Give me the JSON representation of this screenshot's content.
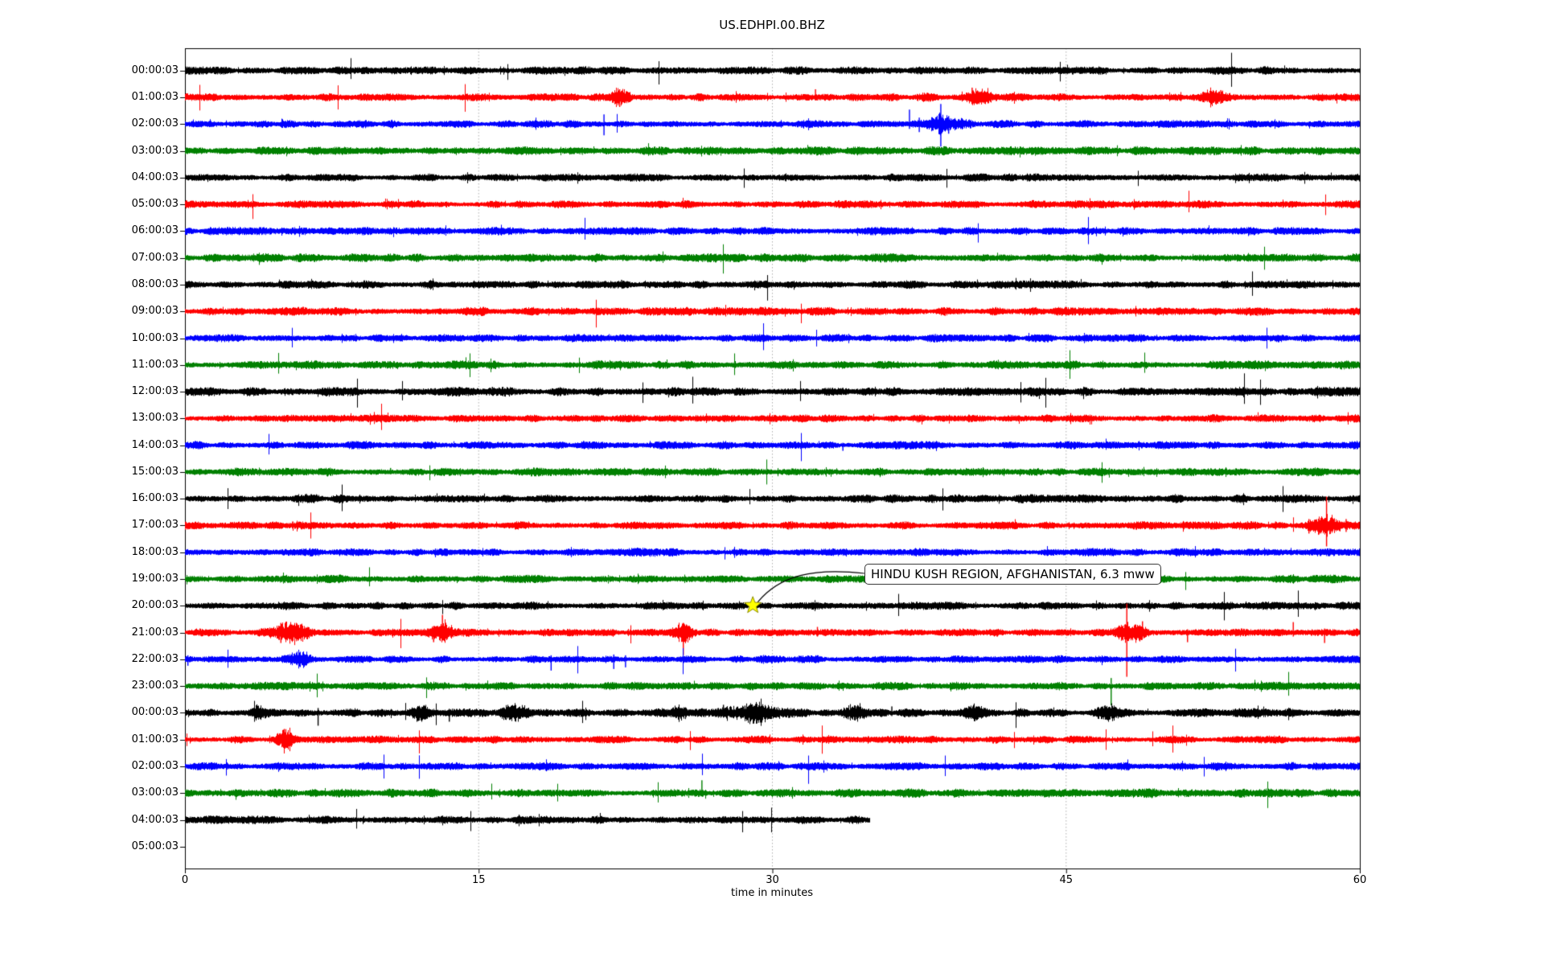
{
  "title": "US.EDHPI.00.BHZ",
  "xlabel": "time in minutes",
  "annotation": {
    "text": "HINDU KUSH REGION, AFGHANISTAN, 6.3 mww",
    "target_row_index": 20,
    "target_minute": 29.0
  },
  "chart_data": {
    "type": "line",
    "subtype": "helicorder-drum-plot",
    "title": "US.EDHPI.00.BHZ",
    "xlabel": "time in minutes",
    "x_range": [
      0,
      60
    ],
    "x_ticks": [
      0,
      15,
      30,
      45,
      60
    ],
    "minutes_per_row": 60,
    "grid": {
      "vertical_at_minutes": [
        15,
        30,
        45
      ],
      "style": "dotted",
      "color": "#9a9a9a"
    },
    "colors_cycle": [
      "#000000",
      "#ff0000",
      "#0000ff",
      "#008000"
    ],
    "marker": {
      "shape": "star",
      "fill": "#ffff00",
      "edge": "#8c8c00",
      "row_index": 20,
      "t": 29.0
    },
    "rows": [
      {
        "label": "00:00:03",
        "color": "#000000",
        "end": 60,
        "base": 3.4,
        "events": [
          {
            "kind": "burst",
            "t": 10.5,
            "dur": 2.0,
            "amp": 1.2
          },
          {
            "kind": "burst",
            "t": 26.0,
            "dur": 2.0,
            "amp": 1.0
          },
          {
            "kind": "burst",
            "t": 45.5,
            "dur": 1.5,
            "amp": 1.2
          }
        ]
      },
      {
        "label": "01:00:03",
        "color": "#ff0000",
        "end": 60,
        "base": 3.2,
        "events": [
          {
            "kind": "burst",
            "t": 22.2,
            "dur": 1.0,
            "amp": 6
          },
          {
            "kind": "spike",
            "t": 22.2,
            "up": 10,
            "down": 12
          },
          {
            "kind": "spike",
            "t": 32.2,
            "up": 10,
            "down": 4
          },
          {
            "kind": "burst",
            "t": 40.6,
            "dur": 1.2,
            "amp": 7
          },
          {
            "kind": "spike",
            "t": 40.2,
            "up": 12,
            "down": 7
          },
          {
            "kind": "burst",
            "t": 52.4,
            "dur": 1.5,
            "amp": 7
          },
          {
            "kind": "spike",
            "t": 52.9,
            "up": 9,
            "down": 8
          },
          {
            "kind": "burst",
            "t": 37.7,
            "dur": 0.8,
            "amp": 3
          }
        ]
      },
      {
        "label": "02:00:03",
        "color": "#0000ff",
        "end": 60,
        "base": 3.2,
        "events": [
          {
            "kind": "spike",
            "t": 21.4,
            "up": 12,
            "down": 14
          },
          {
            "kind": "spike",
            "t": 37.0,
            "up": 18,
            "down": 6
          },
          {
            "kind": "spike",
            "t": 37.5,
            "up": 8,
            "down": 10
          },
          {
            "kind": "burst",
            "t": 38.6,
            "dur": 0.9,
            "amp": 10
          },
          {
            "kind": "spike",
            "t": 38.6,
            "up": 25,
            "down": 28
          },
          {
            "kind": "spike",
            "t": 39.0,
            "up": 10,
            "down": 12
          },
          {
            "kind": "burst",
            "t": 39.7,
            "dur": 1.2,
            "amp": 4
          }
        ]
      },
      {
        "label": "03:00:03",
        "color": "#008000",
        "end": 60,
        "base": 3.6,
        "events": []
      },
      {
        "label": "04:00:03",
        "color": "#000000",
        "end": 60,
        "base": 3.2,
        "events": [
          {
            "kind": "burst",
            "t": 30.5,
            "dur": 2.0,
            "amp": 1.0
          }
        ]
      },
      {
        "label": "05:00:03",
        "color": "#ff0000",
        "end": 60,
        "base": 3.2,
        "events": []
      },
      {
        "label": "06:00:03",
        "color": "#0000ff",
        "end": 60,
        "base": 3.3,
        "events": [
          {
            "kind": "burst",
            "t": 6.0,
            "dur": 1.5,
            "amp": 1.5
          }
        ]
      },
      {
        "label": "07:00:03",
        "color": "#008000",
        "end": 60,
        "base": 3.5,
        "events": []
      },
      {
        "label": "08:00:03",
        "color": "#000000",
        "end": 60,
        "base": 3.3,
        "events": [
          {
            "kind": "spike",
            "t": 22.3,
            "up": 6,
            "down": 3
          }
        ]
      },
      {
        "label": "09:00:03",
        "color": "#ff0000",
        "end": 60,
        "base": 3.5,
        "events": []
      },
      {
        "label": "10:00:03",
        "color": "#0000ff",
        "end": 60,
        "base": 3.2,
        "events": []
      },
      {
        "label": "11:00:03",
        "color": "#008000",
        "end": 60,
        "base": 3.5,
        "events": []
      },
      {
        "label": "12:00:03",
        "color": "#000000",
        "end": 60,
        "base": 3.8,
        "events": [
          {
            "kind": "spike",
            "t": 15.7,
            "up": 6,
            "down": 3
          }
        ]
      },
      {
        "label": "13:00:03",
        "color": "#ff0000",
        "end": 60,
        "base": 3.3,
        "events": []
      },
      {
        "label": "14:00:03",
        "color": "#0000ff",
        "end": 60,
        "base": 3.3,
        "events": [
          {
            "kind": "spike",
            "t": 33.6,
            "up": 3,
            "down": 7
          }
        ]
      },
      {
        "label": "15:00:03",
        "color": "#008000",
        "end": 60,
        "base": 3.4,
        "events": [
          {
            "kind": "spike",
            "t": 10.5,
            "up": 5,
            "down": 3
          }
        ]
      },
      {
        "label": "16:00:03",
        "color": "#000000",
        "end": 60,
        "base": 3.5,
        "events": [
          {
            "kind": "spike",
            "t": 6.2,
            "up": 6,
            "down": 4
          }
        ]
      },
      {
        "label": "17:00:03",
        "color": "#ff0000",
        "end": 60,
        "base": 3.3,
        "events": [
          {
            "kind": "spike",
            "t": 5.5,
            "up": 5,
            "down": 3
          },
          {
            "kind": "burst",
            "t": 58.2,
            "dur": 1.8,
            "amp": 9
          },
          {
            "kind": "spike",
            "t": 58.3,
            "up": 36,
            "down": 26
          },
          {
            "kind": "spike",
            "t": 57.4,
            "up": 8,
            "down": 10
          },
          {
            "kind": "spike",
            "t": 59.3,
            "up": 8,
            "down": 8
          },
          {
            "kind": "spike",
            "t": 55.7,
            "up": 5,
            "down": 5
          }
        ]
      },
      {
        "label": "18:00:03",
        "color": "#0000ff",
        "end": 60,
        "base": 3.3,
        "events": [
          {
            "kind": "burst",
            "t": 24.0,
            "dur": 2.0,
            "amp": 1.2
          }
        ]
      },
      {
        "label": "19:00:03",
        "color": "#008000",
        "end": 60,
        "base": 3.4,
        "events": []
      },
      {
        "label": "20:00:03",
        "color": "#000000",
        "end": 60,
        "base": 3.3,
        "events": []
      },
      {
        "label": "21:00:03",
        "color": "#ff0000",
        "end": 60,
        "base": 3.1,
        "events": [
          {
            "kind": "burst",
            "t": 5.4,
            "dur": 1.8,
            "amp": 9
          },
          {
            "kind": "spike",
            "t": 4.9,
            "up": 12,
            "down": 13
          },
          {
            "kind": "spike",
            "t": 5.9,
            "up": 10,
            "down": 8
          },
          {
            "kind": "burst",
            "t": 13.1,
            "dur": 1.3,
            "amp": 9
          },
          {
            "kind": "spike",
            "t": 13.15,
            "up": 22,
            "down": 9
          },
          {
            "kind": "spike",
            "t": 12.7,
            "up": 8,
            "down": 12
          },
          {
            "kind": "burst",
            "t": 25.4,
            "dur": 0.9,
            "amp": 10
          },
          {
            "kind": "spike",
            "t": 25.45,
            "up": 12,
            "down": 28
          },
          {
            "kind": "spike",
            "t": 32.3,
            "up": 7,
            "down": 5
          },
          {
            "kind": "burst",
            "t": 48.3,
            "dur": 1.6,
            "amp": 9
          },
          {
            "kind": "spike",
            "t": 48.1,
            "up": 36,
            "down": 55
          },
          {
            "kind": "spike",
            "t": 48.9,
            "up": 14,
            "down": 6
          },
          {
            "kind": "spike",
            "t": 51.2,
            "up": 4,
            "down": 12
          },
          {
            "kind": "spike",
            "t": 56.6,
            "up": 13,
            "down": 5
          },
          {
            "kind": "spike",
            "t": 58.2,
            "up": 5,
            "down": 13
          }
        ]
      },
      {
        "label": "22:00:03",
        "color": "#0000ff",
        "end": 60,
        "base": 3.1,
        "events": [
          {
            "kind": "spike",
            "t": 0.15,
            "up": 5,
            "down": 8
          },
          {
            "kind": "burst",
            "t": 5.9,
            "dur": 1.0,
            "amp": 6
          },
          {
            "kind": "spike",
            "t": 18.7,
            "up": 5,
            "down": 14
          },
          {
            "kind": "spike",
            "t": 21.9,
            "up": 6,
            "down": 12
          },
          {
            "kind": "spike",
            "t": 22.5,
            "up": 5,
            "down": 10
          },
          {
            "kind": "burst",
            "t": 30.0,
            "dur": 2.0,
            "amp": 1.2
          }
        ]
      },
      {
        "label": "23:00:03",
        "color": "#008000",
        "end": 60,
        "base": 3.3,
        "events": [
          {
            "kind": "spike",
            "t": 47.3,
            "up": 10,
            "down": 24
          },
          {
            "kind": "burst",
            "t": 39.5,
            "dur": 1.5,
            "amp": 2
          },
          {
            "kind": "burst",
            "t": 13.0,
            "dur": 1.5,
            "amp": 1.2
          }
        ]
      },
      {
        "label": "00:00:03",
        "color": "#000000",
        "end": 60,
        "base": 3.6,
        "events": [
          {
            "kind": "burst",
            "t": 3.7,
            "dur": 0.8,
            "amp": 5
          },
          {
            "kind": "spike",
            "t": 6.8,
            "up": 6,
            "down": 16
          },
          {
            "kind": "burst",
            "t": 12.1,
            "dur": 0.9,
            "amp": 7
          },
          {
            "kind": "spike",
            "t": 13.5,
            "up": 5,
            "down": 11
          },
          {
            "kind": "burst",
            "t": 16.8,
            "dur": 1.6,
            "amp": 6
          },
          {
            "kind": "burst",
            "t": 25.3,
            "dur": 0.8,
            "amp": 6
          },
          {
            "kind": "burst",
            "t": 29.0,
            "dur": 2.4,
            "amp": 8
          },
          {
            "kind": "spike",
            "t": 27.5,
            "up": 10,
            "down": 6
          },
          {
            "kind": "spike",
            "t": 28.6,
            "up": 9,
            "down": 7
          },
          {
            "kind": "burst",
            "t": 34.2,
            "dur": 1.2,
            "amp": 9
          },
          {
            "kind": "spike",
            "t": 34.3,
            "up": 8,
            "down": 8
          },
          {
            "kind": "spike",
            "t": 36.1,
            "up": 8,
            "down": 4
          },
          {
            "kind": "burst",
            "t": 40.3,
            "dur": 0.9,
            "amp": 5
          },
          {
            "kind": "burst",
            "t": 47.2,
            "dur": 1.0,
            "amp": 7
          },
          {
            "kind": "spike",
            "t": 54.6,
            "up": 6,
            "down": 4
          }
        ]
      },
      {
        "label": "01:00:03",
        "color": "#ff0000",
        "end": 60,
        "base": 3.1,
        "events": [
          {
            "kind": "burst",
            "t": 5.1,
            "dur": 0.8,
            "amp": 12
          },
          {
            "kind": "spike",
            "t": 5.15,
            "up": 13,
            "down": 9
          }
        ]
      },
      {
        "label": "02:00:03",
        "color": "#0000ff",
        "end": 60,
        "base": 3.3,
        "events": []
      },
      {
        "label": "03:00:03",
        "color": "#008000",
        "end": 60,
        "base": 3.5,
        "events": [
          {
            "kind": "spike",
            "t": 26.4,
            "up": 16,
            "down": 4
          },
          {
            "kind": "burst",
            "t": 50.0,
            "dur": 2.0,
            "amp": 1.2
          },
          {
            "kind": "burst",
            "t": 13.0,
            "dur": 1.5,
            "amp": 1.0
          }
        ]
      },
      {
        "label": "04:00:03",
        "color": "#000000",
        "end": 35.0,
        "base": 3.4,
        "events": []
      },
      {
        "label": "05:00:03",
        "color": "#000000",
        "end": 0,
        "base": 0,
        "events": []
      }
    ]
  }
}
